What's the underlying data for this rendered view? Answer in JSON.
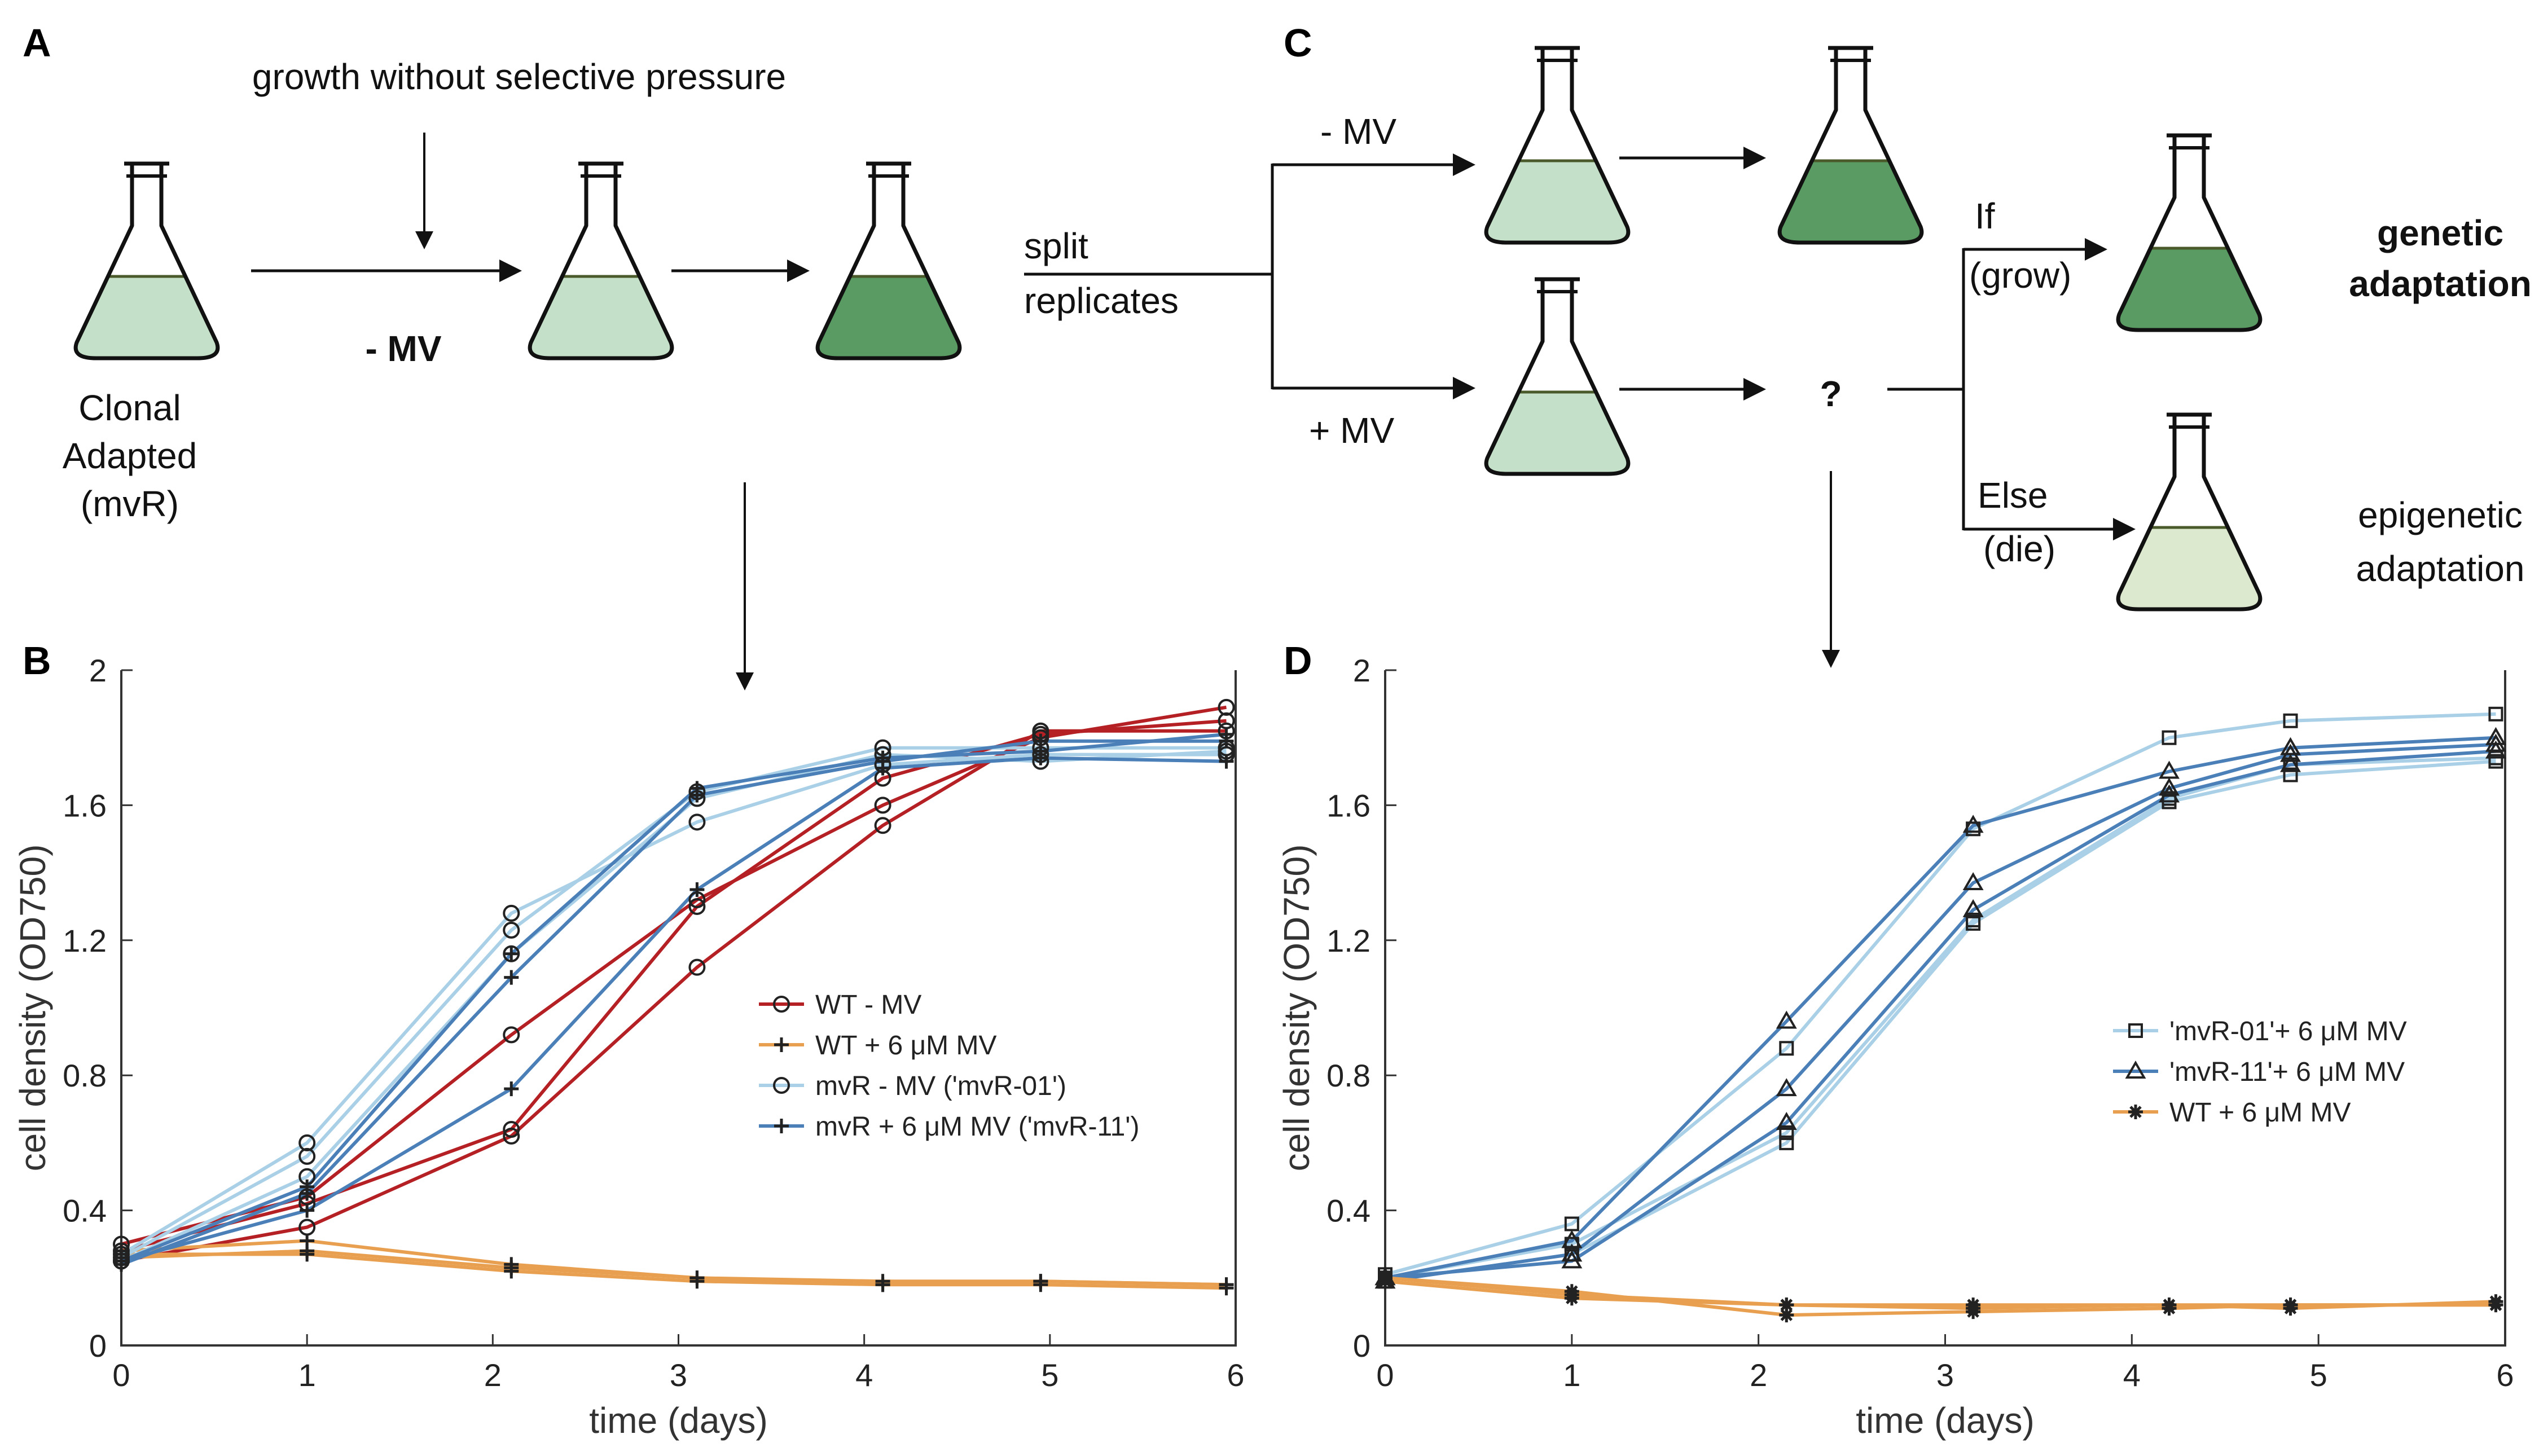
{
  "panels": {
    "A": "A",
    "B": "B",
    "C": "C",
    "D": "D"
  },
  "schematic_a": {
    "top_label": "growth without selective pressure",
    "arrow_label": "- MV",
    "start_label": [
      "Clonal",
      "Adapted",
      "(mvR)"
    ],
    "split_label": [
      "split",
      "replicates"
    ]
  },
  "schematic_c": {
    "minus_label": "- MV",
    "plus_label": "+ MV",
    "question": "?",
    "if_label": [
      "If",
      "(grow)"
    ],
    "else_label": [
      "Else",
      "(die)"
    ],
    "genetic_label": [
      "genetic",
      "adaptation"
    ],
    "epigenetic_label": [
      "epigenetic",
      "adaptation"
    ]
  },
  "colors": {
    "flask_light": "#c5e0c8",
    "flask_dark": "#5a9b64",
    "flask_pale": "#dde9cf",
    "flask_line": "#4a5a2a",
    "wt_minus": "#b52025",
    "wt_plus": "#e8a050",
    "mvr_minus": "#a9d0e6",
    "mvr_plus": "#4a7fb8"
  },
  "chart_data": [
    {
      "type": "line",
      "panel": "B",
      "xlabel": "time (days)",
      "ylabel": "cell density (OD750)",
      "xlim": [
        0,
        6
      ],
      "ylim": [
        0,
        2
      ],
      "xticks": [
        "0",
        "1",
        "2",
        "3",
        "4",
        "5",
        "6"
      ],
      "yticks": [
        "0",
        "0.4",
        "0.8",
        "1.2",
        "1.6",
        "2"
      ],
      "legend": [
        {
          "label": "WT - MV",
          "marker": "circle",
          "color": "#b52025"
        },
        {
          "label": "WT +  6 μM MV",
          "marker": "plus",
          "color": "#e8a050"
        },
        {
          "label": "mvR - MV ('mvR-01')",
          "marker": "circle",
          "color": "#a9d0e6"
        },
        {
          "label": "mvR + 6 μM MV ('mvR-11')",
          "marker": "plus",
          "color": "#4a7fb8"
        }
      ],
      "series": [
        {
          "name": "WT - MV",
          "color": "#b52025",
          "marker": "circle",
          "x": [
            0,
            1,
            2.1,
            3.1,
            4.1,
            4.95,
            5.95
          ],
          "y": [
            0.3,
            0.44,
            0.92,
            1.32,
            1.6,
            1.8,
            1.89
          ]
        },
        {
          "color": "#b52025",
          "marker": "circle",
          "x": [
            0,
            1,
            2.1,
            3.1,
            4.1,
            4.95,
            5.95
          ],
          "y": [
            0.28,
            0.42,
            0.64,
            1.3,
            1.68,
            1.81,
            1.85
          ]
        },
        {
          "color": "#b52025",
          "marker": "circle",
          "x": [
            0,
            1,
            2.1,
            3.1,
            4.1,
            4.95,
            5.95
          ],
          "y": [
            0.25,
            0.35,
            0.62,
            1.12,
            1.54,
            1.82,
            1.82
          ]
        },
        {
          "name": "WT +  6 μM MV",
          "color": "#e8a050",
          "marker": "plus",
          "x": [
            0,
            1,
            2.1,
            3.1,
            4.1,
            4.95,
            5.95
          ],
          "y": [
            0.28,
            0.31,
            0.24,
            0.2,
            0.19,
            0.19,
            0.18
          ]
        },
        {
          "color": "#e8a050",
          "marker": "plus",
          "x": [
            0,
            1,
            2.1,
            3.1,
            4.1,
            4.95,
            5.95
          ],
          "y": [
            0.27,
            0.27,
            0.22,
            0.19,
            0.18,
            0.18,
            0.17
          ]
        },
        {
          "color": "#e8a050",
          "marker": "plus",
          "x": [
            0,
            1,
            2.1,
            3.1,
            4.1,
            4.95,
            5.95
          ],
          "y": [
            0.26,
            0.28,
            0.23,
            0.2,
            0.18,
            0.19,
            0.18
          ]
        },
        {
          "name": "mvR - MV ('mvR-01')",
          "color": "#a9d0e6",
          "marker": "circle",
          "x": [
            0,
            1,
            2.1,
            3.1,
            4.1,
            4.95,
            5.95
          ],
          "y": [
            0.27,
            0.6,
            1.28,
            1.55,
            1.72,
            1.75,
            1.75
          ]
        },
        {
          "color": "#a9d0e6",
          "marker": "circle",
          "x": [
            0,
            1,
            2.1,
            3.1,
            4.1,
            4.95,
            5.95
          ],
          "y": [
            0.26,
            0.56,
            1.23,
            1.64,
            1.77,
            1.77,
            1.77
          ]
        },
        {
          "color": "#a9d0e6",
          "marker": "circle",
          "x": [
            0,
            1,
            2.1,
            3.1,
            4.1,
            4.95,
            5.95
          ],
          "y": [
            0.25,
            0.5,
            1.16,
            1.62,
            1.75,
            1.73,
            1.76
          ]
        },
        {
          "name": "mvR + 6 μM MV ('mvR-11')",
          "color": "#4a7fb8",
          "marker": "plus",
          "x": [
            0,
            1,
            2.1,
            3.1,
            4.1,
            4.95,
            5.95
          ],
          "y": [
            0.25,
            0.47,
            1.16,
            1.65,
            1.74,
            1.76,
            1.81
          ]
        },
        {
          "color": "#4a7fb8",
          "marker": "plus",
          "x": [
            0,
            1,
            2.1,
            3.1,
            4.1,
            4.95,
            5.95
          ],
          "y": [
            0.24,
            0.45,
            1.09,
            1.63,
            1.73,
            1.79,
            1.79
          ]
        },
        {
          "color": "#4a7fb8",
          "marker": "plus",
          "x": [
            0,
            1,
            2.1,
            3.1,
            4.1,
            4.95,
            5.95
          ],
          "y": [
            0.25,
            0.4,
            0.76,
            1.35,
            1.71,
            1.74,
            1.73
          ]
        }
      ]
    },
    {
      "type": "line",
      "panel": "D",
      "xlabel": "time (days)",
      "ylabel": "cell density (OD750)",
      "xlim": [
        0,
        6
      ],
      "ylim": [
        0,
        2
      ],
      "xticks": [
        "0",
        "1",
        "2",
        "3",
        "4",
        "5",
        "6"
      ],
      "yticks": [
        "0",
        "0.4",
        "0.8",
        "1.2",
        "1.6",
        "2"
      ],
      "legend": [
        {
          "label": "'mvR-01'+ 6 μM MV",
          "marker": "square",
          "color": "#a9d0e6"
        },
        {
          "label": "'mvR-11'+ 6 μM MV",
          "marker": "triangle",
          "color": "#4a7fb8"
        },
        {
          "label": "WT + 6 μM MV",
          "marker": "star",
          "color": "#e8a050"
        }
      ],
      "series": [
        {
          "name": "'mvR-01'+ 6 μM MV",
          "color": "#a9d0e6",
          "marker": "square",
          "x": [
            0,
            1,
            2.15,
            3.15,
            4.2,
            4.85,
            5.95
          ],
          "y": [
            0.21,
            0.36,
            0.88,
            1.53,
            1.8,
            1.85,
            1.87
          ]
        },
        {
          "color": "#a9d0e6",
          "marker": "square",
          "x": [
            0,
            1,
            2.15,
            3.15,
            4.2,
            4.85,
            5.95
          ],
          "y": [
            0.2,
            0.3,
            0.63,
            1.26,
            1.62,
            1.72,
            1.74
          ]
        },
        {
          "color": "#a9d0e6",
          "marker": "square",
          "x": [
            0,
            1,
            2.15,
            3.15,
            4.2,
            4.85,
            5.95
          ],
          "y": [
            0.19,
            0.27,
            0.6,
            1.25,
            1.61,
            1.69,
            1.73
          ]
        },
        {
          "name": "'mvR-11'+ 6 μM MV",
          "color": "#4a7fb8",
          "marker": "triangle",
          "x": [
            0,
            1,
            2.15,
            3.15,
            4.2,
            4.85,
            5.95
          ],
          "y": [
            0.2,
            0.31,
            0.96,
            1.54,
            1.7,
            1.77,
            1.8
          ]
        },
        {
          "color": "#4a7fb8",
          "marker": "triangle",
          "x": [
            0,
            1,
            2.15,
            3.15,
            4.2,
            4.85,
            5.95
          ],
          "y": [
            0.19,
            0.27,
            0.76,
            1.37,
            1.65,
            1.75,
            1.78
          ]
        },
        {
          "color": "#4a7fb8",
          "marker": "triangle",
          "x": [
            0,
            1,
            2.15,
            3.15,
            4.2,
            4.85,
            5.95
          ],
          "y": [
            0.2,
            0.25,
            0.66,
            1.29,
            1.63,
            1.72,
            1.76
          ]
        },
        {
          "name": "WT + 6 μM MV",
          "color": "#e8a050",
          "marker": "star",
          "x": [
            0,
            1,
            2.15,
            3.15,
            4.2,
            4.85,
            5.95
          ],
          "y": [
            0.2,
            0.15,
            0.12,
            0.12,
            0.12,
            0.12,
            0.12
          ]
        },
        {
          "color": "#e8a050",
          "marker": "star",
          "x": [
            0,
            1,
            2.15,
            3.15,
            4.2,
            4.85,
            5.95
          ],
          "y": [
            0.2,
            0.16,
            0.09,
            0.1,
            0.11,
            0.12,
            0.12
          ]
        },
        {
          "color": "#e8a050",
          "marker": "star",
          "x": [
            0,
            1,
            2.15,
            3.15,
            4.2,
            4.85,
            5.95
          ],
          "y": [
            0.19,
            0.14,
            0.12,
            0.11,
            0.12,
            0.11,
            0.13
          ]
        }
      ]
    }
  ]
}
